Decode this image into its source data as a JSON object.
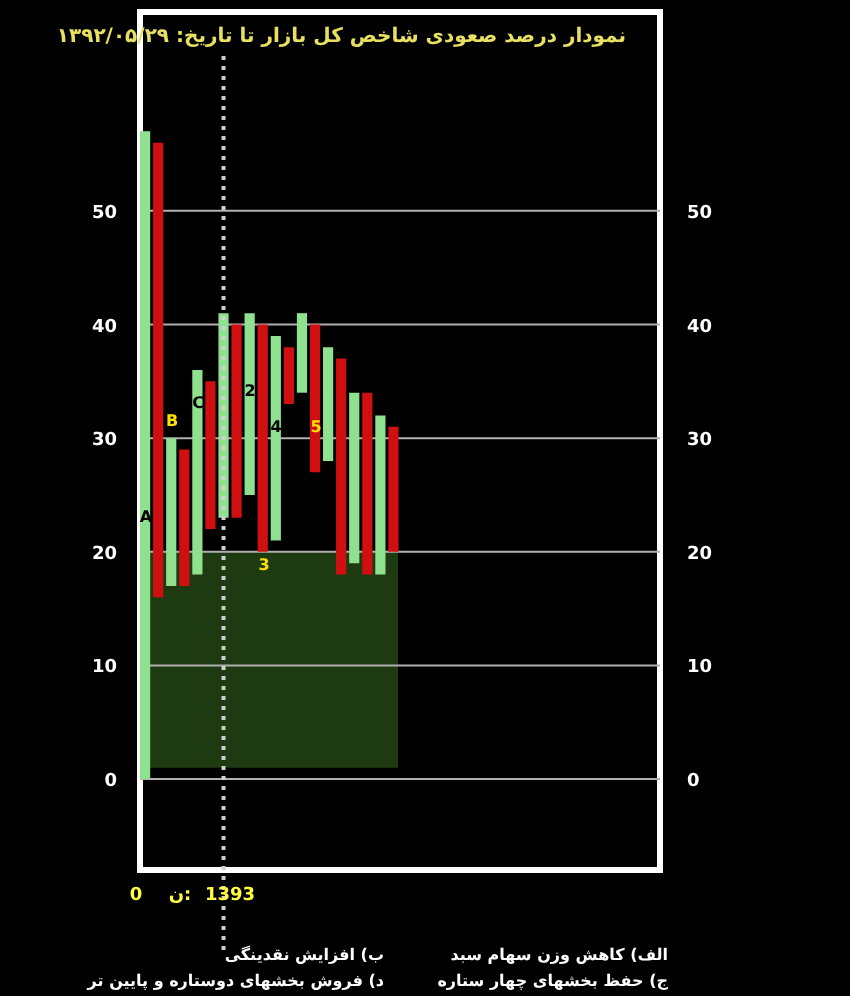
{
  "chart_data": {
    "type": "bar",
    "title": "نمودار درصد صعودی شاخص کل بازار  تا تاریخ: ۱۳۹۲/۰۵/۲۹",
    "categories": [
      null,
      null,
      null,
      null,
      null,
      null,
      null,
      null,
      null,
      null,
      null,
      null,
      null,
      null,
      null,
      null,
      null,
      null,
      null,
      null,
      null,
      null,
      null,
      null,
      null,
      null,
      null,
      null,
      null,
      null,
      null,
      null,
      null,
      null,
      null,
      null,
      null,
      null,
      null,
      null
    ],
    "ylim": [
      -8,
      67.5
    ],
    "yticks": [
      0,
      10,
      20,
      30,
      40,
      50
    ],
    "y2lim": [
      -8,
      67.5
    ],
    "y2ticks": [
      0,
      10,
      20,
      30,
      40,
      50
    ],
    "grid": "y",
    "base": [
      0,
      16,
      17,
      17,
      18,
      22,
      23,
      23,
      25,
      20,
      21,
      33,
      34,
      27,
      28,
      18,
      19,
      18,
      18,
      20,
      null,
      null,
      null,
      null,
      null,
      null,
      null,
      null,
      null,
      null,
      null,
      null,
      null,
      null,
      null,
      null,
      null,
      null,
      null,
      null
    ],
    "values": [
      57,
      40,
      13,
      12,
      18,
      13,
      18,
      17,
      16,
      20,
      18,
      5,
      7,
      13,
      10,
      19,
      15,
      16,
      14,
      11,
      null,
      null,
      null,
      null,
      null,
      null,
      null,
      null,
      null,
      null,
      null,
      null,
      null,
      null,
      null,
      null,
      null,
      null,
      null,
      null
    ],
    "colors": [
      "#8fe08f",
      "#d01010",
      "#8fe08f",
      "#d01010",
      "#8fe08f",
      "#d01010",
      "#8fe08f",
      "#d01010",
      "#8fe08f",
      "#d01010",
      "#8fe08f",
      "#d01010",
      "#8fe08f",
      "#d01010",
      "#8fe08f",
      "#d01010",
      "#8fe08f",
      "#d01010",
      "#8fe08f",
      "#d01010",
      null,
      null,
      null,
      null,
      null,
      null,
      null,
      null,
      null,
      null,
      null,
      null,
      null,
      null,
      null,
      null,
      null,
      null,
      null,
      null
    ],
    "bands": [
      {
        "axis": "y",
        "from": 1,
        "to": 20,
        "color": "#1e3a10"
      }
    ],
    "annotations": [
      "A",
      "B",
      "C",
      "2",
      "3",
      "4",
      "5",
      "0",
      "ن:",
      "1393",
      "الف) کاهش وزن سهام سبد",
      "ب) افزایش نقدینگی",
      "ج) حفظ بخشهای چهار ستاره",
      "د) فروش بخشهای دوستاره و پایین تر"
    ]
  }
}
